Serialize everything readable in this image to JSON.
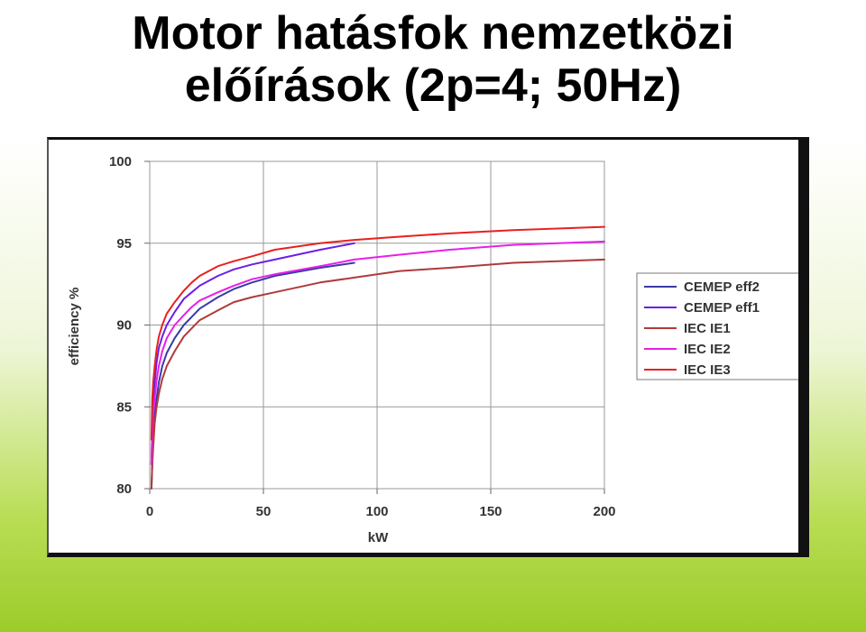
{
  "title": {
    "line1": "Motor hatásfok  nemzetközi",
    "line2": "előírások (2p=4; 50Hz)"
  },
  "chart_data": {
    "type": "line",
    "xlabel": "kW",
    "ylabel": "efficiency %",
    "xlim": [
      0,
      200
    ],
    "ylim": [
      80,
      100
    ],
    "x_ticks": [
      "0",
      "50",
      "100",
      "150",
      "200"
    ],
    "y_ticks": [
      "80",
      "85",
      "90",
      "95",
      "100"
    ],
    "grid": true,
    "legend_position": "right",
    "series": [
      {
        "name": "CEMEP eff2",
        "color": "#3a3aa8",
        "x": [
          0.75,
          1.1,
          1.5,
          2.2,
          3,
          4,
          5.5,
          7.5,
          11,
          15,
          18.5,
          22,
          30,
          37,
          45,
          55,
          75,
          90
        ],
        "y": [
          80.0,
          81.5,
          83.0,
          84.5,
          85.5,
          86.5,
          87.5,
          88.3,
          89.2,
          90.0,
          90.5,
          91.0,
          91.7,
          92.2,
          92.6,
          93.0,
          93.5,
          93.8
        ]
      },
      {
        "name": "CEMEP eff1",
        "color": "#6a1fe8",
        "x": [
          0.75,
          1.1,
          1.5,
          2.2,
          3,
          4,
          5.5,
          7.5,
          11,
          15,
          18.5,
          22,
          30,
          37,
          45,
          55,
          75,
          90
        ],
        "y": [
          81.5,
          83.5,
          85.0,
          86.5,
          87.7,
          88.6,
          89.3,
          90.0,
          90.8,
          91.6,
          92.0,
          92.4,
          93.0,
          93.4,
          93.7,
          94.0,
          94.6,
          95.0
        ]
      },
      {
        "name": "IEC IE1",
        "color": "#b03a3a",
        "x": [
          0.75,
          1.1,
          1.5,
          2.2,
          3,
          4,
          5.5,
          7.5,
          11,
          15,
          18.5,
          22,
          30,
          37,
          45,
          55,
          75,
          90,
          110,
          132,
          160,
          200
        ],
        "y": [
          80.0,
          81.5,
          82.5,
          84.0,
          85.0,
          85.8,
          86.7,
          87.5,
          88.4,
          89.3,
          89.8,
          90.3,
          90.9,
          91.4,
          91.7,
          92.0,
          92.6,
          92.9,
          93.3,
          93.5,
          93.8,
          94.0
        ]
      },
      {
        "name": "IEC IE2",
        "color": "#e81fe8",
        "x": [
          0.75,
          1.1,
          1.5,
          2.2,
          3,
          4,
          5.5,
          7.5,
          11,
          15,
          18.5,
          22,
          30,
          37,
          45,
          55,
          75,
          90,
          110,
          132,
          160,
          200
        ],
        "y": [
          81.5,
          83.5,
          84.5,
          85.5,
          86.6,
          87.5,
          88.4,
          89.2,
          90.0,
          90.6,
          91.1,
          91.5,
          92.0,
          92.4,
          92.8,
          93.1,
          93.6,
          94.0,
          94.3,
          94.6,
          94.9,
          95.1
        ]
      },
      {
        "name": "IEC IE3",
        "color": "#e82020",
        "x": [
          0.75,
          1.1,
          1.5,
          2.2,
          3,
          4,
          5.5,
          7.5,
          11,
          15,
          18.5,
          22,
          30,
          37,
          45,
          55,
          75,
          90,
          110,
          132,
          160,
          200
        ],
        "y": [
          83.0,
          85.5,
          86.5,
          87.5,
          88.5,
          89.3,
          90.0,
          90.7,
          91.4,
          92.1,
          92.6,
          93.0,
          93.6,
          93.9,
          94.2,
          94.6,
          95.0,
          95.2,
          95.4,
          95.6,
          95.8,
          96.0
        ]
      }
    ]
  }
}
